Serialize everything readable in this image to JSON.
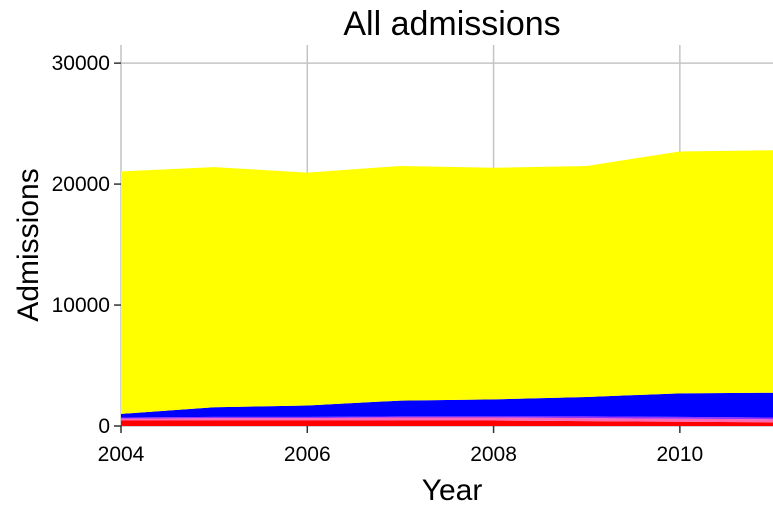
{
  "chart_data": {
    "type": "area",
    "stacked": true,
    "title": "All admissions",
    "xlabel": "Year",
    "ylabel": "Admissions",
    "xlim": [
      2004,
      2011
    ],
    "ylim": [
      0,
      31500
    ],
    "x_ticks": [
      "2004",
      "2006",
      "2008",
      "2010"
    ],
    "y_ticks": [
      "0",
      "10000",
      "20000",
      "30000"
    ],
    "x_tick_values": [
      2004,
      2006,
      2008,
      2010
    ],
    "y_tick_values": [
      0,
      10000,
      20000,
      30000
    ],
    "grid": true,
    "legend": "none",
    "x": [
      2004,
      2005,
      2006,
      2007,
      2008,
      2009,
      2010,
      2011
    ],
    "series": [
      {
        "color": "#ff0000",
        "values": [
          450,
          450,
          450,
          450,
          450,
          400,
          350,
          300
        ]
      },
      {
        "color": "#ff69b4",
        "values": [
          150,
          200,
          200,
          250,
          250,
          250,
          250,
          250
        ]
      },
      {
        "color": "#9b30ff",
        "values": [
          100,
          100,
          100,
          100,
          100,
          150,
          150,
          150
        ]
      },
      {
        "color": "#0000ff",
        "values": [
          300,
          800,
          950,
          1300,
          1400,
          1600,
          1950,
          2050
        ]
      },
      {
        "color": "#ffff00",
        "values": [
          20050,
          19850,
          19250,
          19400,
          19150,
          19100,
          20000,
          20050
        ]
      }
    ]
  }
}
